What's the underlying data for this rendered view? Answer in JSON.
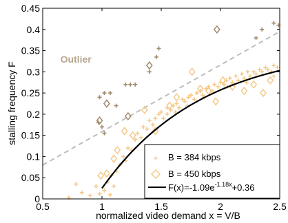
{
  "chart_data": {
    "type": "scatter",
    "xlabel": "normalized video demand x = V/B",
    "ylabel": "stalling frequency F",
    "xlim": [
      0.5,
      2.5
    ],
    "ylim": [
      0,
      0.45
    ],
    "xticks": [
      "0.5",
      "1",
      "1.5",
      "2",
      "2.5"
    ],
    "yticks": [
      "0",
      "0.05",
      "0.1",
      "0.15",
      "0.2",
      "0.25",
      "0.3",
      "0.35",
      "0.4",
      "0.45"
    ],
    "grid": false,
    "legend": {
      "placement": "bottom-right"
    },
    "colors": {
      "normal": "#f5c98a",
      "outlier": "#a08b6c",
      "fit": "#000000",
      "boundary": "#bdbdbd",
      "annotation": "#b8a890"
    },
    "annotation": {
      "text": "Outlier",
      "x": 0.78,
      "y": 0.322
    },
    "series": [
      {
        "name": "B = 384 kbps",
        "marker": "plus",
        "points": [
          [
            0.72,
            0.003
          ],
          [
            0.83,
            0.015
          ],
          [
            0.9,
            0.008
          ],
          [
            0.95,
            0.03
          ],
          [
            0.98,
            0.012
          ],
          [
            1.02,
            0.02
          ],
          [
            1.05,
            0.04
          ],
          [
            1.08,
            0.055
          ],
          [
            1.1,
            0.03
          ],
          [
            1.12,
            0.065
          ],
          [
            1.15,
            0.08
          ],
          [
            1.18,
            0.1
          ],
          [
            1.2,
            0.09
          ],
          [
            1.22,
            0.12
          ],
          [
            1.25,
            0.115
          ],
          [
            1.28,
            0.14
          ],
          [
            1.3,
            0.155
          ],
          [
            1.33,
            0.145
          ],
          [
            1.35,
            0.17
          ],
          [
            1.38,
            0.165
          ],
          [
            1.4,
            0.185
          ],
          [
            1.43,
            0.175
          ],
          [
            1.45,
            0.19
          ],
          [
            1.48,
            0.2
          ],
          [
            1.5,
            0.205
          ],
          [
            1.52,
            0.19
          ],
          [
            1.55,
            0.215
          ],
          [
            1.58,
            0.21
          ],
          [
            1.6,
            0.22
          ],
          [
            1.63,
            0.225
          ],
          [
            1.65,
            0.215
          ],
          [
            1.68,
            0.235
          ],
          [
            1.7,
            0.23
          ],
          [
            1.73,
            0.24
          ],
          [
            1.75,
            0.245
          ],
          [
            1.78,
            0.235
          ],
          [
            1.8,
            0.25
          ],
          [
            1.83,
            0.255
          ],
          [
            1.85,
            0.245
          ],
          [
            1.88,
            0.26
          ],
          [
            1.9,
            0.265
          ],
          [
            1.93,
            0.255
          ],
          [
            1.95,
            0.27
          ],
          [
            1.98,
            0.265
          ],
          [
            2.0,
            0.275
          ],
          [
            2.03,
            0.27
          ],
          [
            2.05,
            0.28
          ],
          [
            2.08,
            0.285
          ],
          [
            2.1,
            0.275
          ],
          [
            2.13,
            0.29
          ],
          [
            2.15,
            0.28
          ],
          [
            2.18,
            0.295
          ],
          [
            2.2,
            0.285
          ],
          [
            2.23,
            0.3
          ],
          [
            2.25,
            0.29
          ],
          [
            2.28,
            0.3
          ],
          [
            2.3,
            0.295
          ],
          [
            2.33,
            0.305
          ],
          [
            2.35,
            0.3
          ],
          [
            2.38,
            0.31
          ],
          [
            2.4,
            0.305
          ],
          [
            2.43,
            0.3
          ],
          [
            2.45,
            0.315
          ],
          [
            2.48,
            0.31
          ],
          [
            1.55,
            0.2
          ],
          [
            1.62,
            0.205
          ],
          [
            1.72,
            0.22
          ],
          [
            1.86,
            0.24
          ],
          [
            2.06,
            0.265
          ],
          [
            2.22,
            0.275
          ],
          [
            0.78,
            0.035
          ],
          [
            1.07,
            0.01
          ],
          [
            2.45,
            0.29
          ]
        ]
      },
      {
        "name": "B = 450 kbps",
        "marker": "diamond",
        "points": [
          [
            0.99,
            0.055
          ],
          [
            1.04,
            0.06
          ],
          [
            1.1,
            0.095
          ],
          [
            1.13,
            0.115
          ],
          [
            1.19,
            0.16
          ],
          [
            1.26,
            0.15
          ],
          [
            1.36,
            0.21
          ],
          [
            1.45,
            0.16
          ],
          [
            1.57,
            0.22
          ],
          [
            1.63,
            0.24
          ],
          [
            1.76,
            0.3
          ],
          [
            1.83,
            0.26
          ],
          [
            1.9,
            0.255
          ],
          [
            1.96,
            0.23
          ],
          [
            2.02,
            0.28
          ],
          [
            2.1,
            0.265
          ],
          [
            2.2,
            0.255
          ],
          [
            2.28,
            0.27
          ],
          [
            2.36,
            0.25
          ],
          [
            2.42,
            0.28
          ]
        ]
      },
      {
        "name": "",
        "marker": "plus-outlier",
        "points": [
          [
            0.98,
            0.24
          ],
          [
            1.02,
            0.25
          ],
          [
            1.07,
            0.25
          ],
          [
            1.2,
            0.27
          ],
          [
            1.24,
            0.27
          ],
          [
            1.28,
            0.27
          ],
          [
            1.4,
            0.3
          ],
          [
            1.46,
            0.335
          ],
          [
            0.97,
            0.18
          ],
          [
            1.0,
            0.17
          ],
          [
            2.45,
            0.415
          ],
          [
            2.49,
            0.41
          ],
          [
            2.3,
            0.38
          ],
          [
            2.35,
            0.4
          ],
          [
            1.48,
            0.355
          ],
          [
            1.02,
            0.155
          ],
          [
            1.12,
            0.22
          ]
        ]
      },
      {
        "name": "",
        "marker": "diamond-outlier",
        "points": [
          [
            1.04,
            0.225
          ],
          [
            1.22,
            0.195
          ],
          [
            1.4,
            0.315
          ],
          [
            1.97,
            0.4
          ],
          [
            0.98,
            0.185
          ]
        ]
      },
      {
        "name": "F(x)=-1.09e",
        "name_sup": "-1.18x",
        "name_tail": "+0.36",
        "type": "line",
        "a": -1.09,
        "b": -1.18,
        "c": 0.36,
        "x_range": [
          1.0,
          2.5
        ]
      },
      {
        "name": "",
        "type": "dashed-line",
        "points": [
          [
            0.5,
            0.08
          ],
          [
            2.5,
            0.395
          ]
        ]
      }
    ]
  }
}
